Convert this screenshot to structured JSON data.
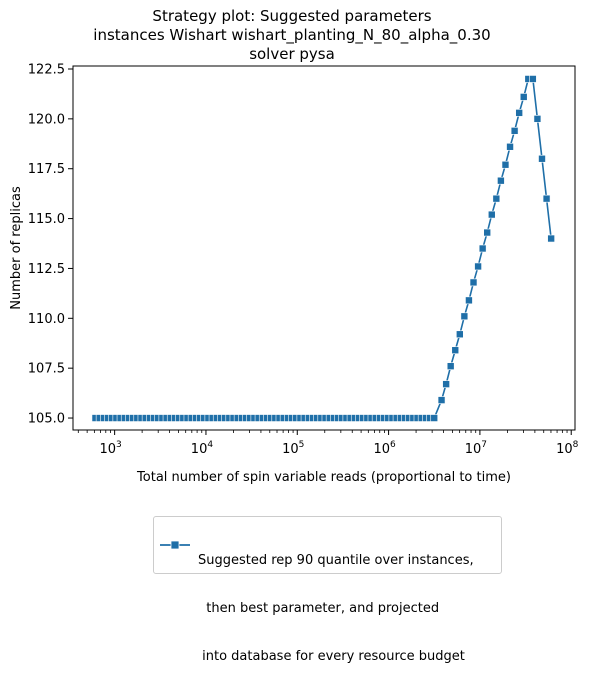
{
  "title": {
    "line1": "Strategy plot: Suggested parameters",
    "line2": "instances Wishart wishart_planting_N_80_alpha_0.30",
    "line3": "solver pysa"
  },
  "legend": {
    "line1": "Suggested rep 90 quantile over instances,",
    "line2": "  then best parameter, and projected",
    "line3": " into database for every resource budget"
  },
  "colors": {
    "series": "#1f6fa8"
  },
  "chart_data": {
    "type": "line",
    "xlabel": "Total number of spin variable reads (proportional to time)",
    "ylabel": "Number of replicas",
    "xscale": "log",
    "xlim": [
      350,
      110000000
    ],
    "ylim": [
      104.4,
      122.65
    ],
    "x_ticks": [
      1000,
      10000,
      100000,
      1000000,
      10000000,
      100000000
    ],
    "x_tick_labels": [
      [
        "10",
        "3"
      ],
      [
        "10",
        "4"
      ],
      [
        "10",
        "5"
      ],
      [
        "10",
        "6"
      ],
      [
        "10",
        "7"
      ],
      [
        "10",
        "8"
      ]
    ],
    "y_ticks": [
      105.0,
      107.5,
      110.0,
      112.5,
      115.0,
      117.5,
      120.0,
      122.5
    ],
    "y_tick_labels": [
      "105.0",
      "107.5",
      "110.0",
      "112.5",
      "115.0",
      "117.5",
      "120.0",
      "122.5"
    ],
    "series": [
      {
        "name": "Suggested rep 90 quantile over instances,\n  then best parameter, and projected\n into database for every resource budget",
        "marker": "square",
        "log_x_start": 2.79,
        "log_x_end": 6.53,
        "log_x_step": 0.0458,
        "constant_value": 105.0,
        "ramp_points": [
          [
            6.58,
            105.9
          ],
          [
            6.63,
            106.7
          ],
          [
            6.68,
            107.6
          ],
          [
            6.73,
            108.4
          ],
          [
            6.78,
            109.2
          ],
          [
            6.83,
            110.1
          ],
          [
            6.88,
            110.9
          ],
          [
            6.93,
            111.8
          ],
          [
            6.98,
            112.6
          ],
          [
            7.03,
            113.5
          ],
          [
            7.08,
            114.3
          ],
          [
            7.13,
            115.2
          ],
          [
            7.18,
            116.0
          ],
          [
            7.23,
            116.9
          ],
          [
            7.28,
            117.7
          ],
          [
            7.33,
            118.6
          ],
          [
            7.38,
            119.4
          ],
          [
            7.43,
            120.3
          ],
          [
            7.48,
            121.1
          ],
          [
            7.53,
            122.0
          ],
          [
            7.58,
            122.0
          ],
          [
            7.63,
            120.0
          ],
          [
            7.68,
            118.0
          ],
          [
            7.73,
            116.0
          ],
          [
            7.78,
            114.0
          ]
        ]
      }
    ]
  }
}
